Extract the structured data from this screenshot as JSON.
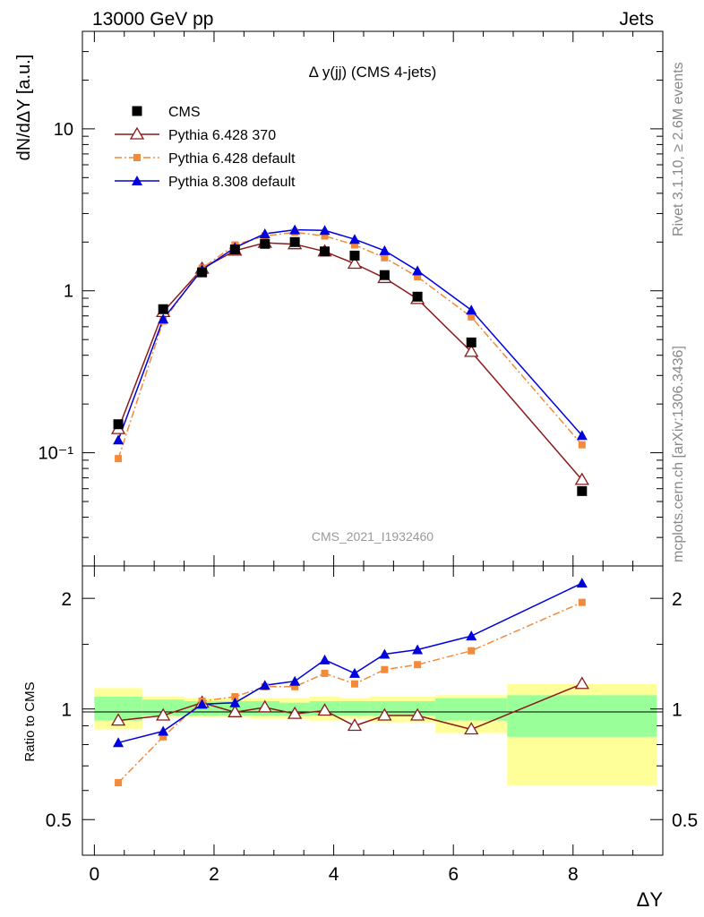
{
  "header": {
    "left": "13000 GeV pp",
    "right": "Jets"
  },
  "side_texts": {
    "rivet": "Rivet 3.1.10, ≥ 2.6M events",
    "mcplots": "mcplots.cern.ch [arXiv:1306.3436]"
  },
  "watermark": "CMS_2021_I1932460",
  "legend_title": "Δ y(jj) (CMS 4-jets)",
  "colors": {
    "cms": "#000000",
    "p6_370": "#8b1a1a",
    "p6_default": "#f28a3a",
    "p8": "#0000dd",
    "band_stat": "#99ff99",
    "band_total": "#ffff99"
  },
  "chart_data": [
    {
      "panel": "main",
      "type": "scatter",
      "ylabel": "dN/dΔY [a.u.]",
      "yscale": "log",
      "ylim": [
        0.02,
        40
      ],
      "xlim": [
        -0.2,
        9.5
      ],
      "y_tick_labels": [
        "10⁻¹",
        "1",
        "10"
      ],
      "x": [
        0.4,
        1.15,
        1.8,
        2.35,
        2.85,
        3.35,
        3.85,
        4.35,
        4.85,
        5.4,
        6.3,
        8.15
      ],
      "series": [
        {
          "name": "CMS",
          "key": "cms",
          "marker": "square",
          "values": [
            0.15,
            0.77,
            1.3,
            1.8,
            1.95,
            2.0,
            1.75,
            1.65,
            1.25,
            0.92,
            0.48,
            0.058
          ]
        },
        {
          "name": "Pythia 6.428 370",
          "key": "p6_370",
          "marker": "open-triangle",
          "line": "solid",
          "values": [
            0.14,
            0.74,
            1.37,
            1.77,
            1.98,
            1.94,
            1.75,
            1.47,
            1.2,
            0.89,
            0.42,
            0.068
          ]
        },
        {
          "name": "Pythia 6.428 default",
          "key": "p6_default",
          "marker": "filled-square-small",
          "line": "dashdot",
          "values": [
            0.092,
            0.65,
            1.38,
            1.92,
            2.18,
            2.3,
            2.18,
            1.92,
            1.6,
            1.22,
            0.69,
            0.112
          ]
        },
        {
          "name": "Pythia 8.308 default",
          "key": "p8",
          "marker": "filled-triangle",
          "line": "solid",
          "values": [
            0.12,
            0.67,
            1.35,
            1.85,
            2.25,
            2.38,
            2.36,
            2.08,
            1.77,
            1.33,
            0.76,
            0.128
          ]
        }
      ]
    },
    {
      "panel": "ratio",
      "type": "line",
      "xlabel": "ΔY",
      "ylabel": "Ratio to CMS",
      "yscale": "log",
      "ylim": [
        0.4,
        2.45
      ],
      "xlim": [
        -0.2,
        9.5
      ],
      "y_tick_labels": [
        "0.5",
        "1",
        "2"
      ],
      "x_tick_labels": [
        "0",
        "2",
        "4",
        "6",
        "8"
      ],
      "bins": [
        {
          "lo": 0.0,
          "hi": 0.8,
          "stat": [
            0.93,
            1.08
          ],
          "total": [
            0.88,
            1.14
          ]
        },
        {
          "lo": 0.8,
          "hi": 1.5,
          "stat": [
            0.96,
            1.06
          ],
          "total": [
            0.95,
            1.08
          ]
        },
        {
          "lo": 1.5,
          "hi": 2.1,
          "stat": [
            0.96,
            1.05
          ],
          "total": [
            0.95,
            1.07
          ]
        },
        {
          "lo": 2.1,
          "hi": 2.6,
          "stat": [
            0.96,
            1.05
          ],
          "total": [
            0.95,
            1.07
          ]
        },
        {
          "lo": 2.6,
          "hi": 3.1,
          "stat": [
            0.96,
            1.05
          ],
          "total": [
            0.94,
            1.07
          ]
        },
        {
          "lo": 3.1,
          "hi": 3.6,
          "stat": [
            0.96,
            1.04
          ],
          "total": [
            0.94,
            1.07
          ]
        },
        {
          "lo": 3.6,
          "hi": 4.1,
          "stat": [
            0.96,
            1.05
          ],
          "total": [
            0.93,
            1.08
          ]
        },
        {
          "lo": 4.1,
          "hi": 4.6,
          "stat": [
            0.96,
            1.05
          ],
          "total": [
            0.94,
            1.07
          ]
        },
        {
          "lo": 4.6,
          "hi": 5.1,
          "stat": [
            0.96,
            1.05
          ],
          "total": [
            0.92,
            1.08
          ]
        },
        {
          "lo": 5.1,
          "hi": 5.7,
          "stat": [
            0.96,
            1.05
          ],
          "total": [
            0.92,
            1.08
          ]
        },
        {
          "lo": 5.7,
          "hi": 6.9,
          "stat": [
            0.93,
            1.07
          ],
          "total": [
            0.86,
            1.09
          ]
        },
        {
          "lo": 6.9,
          "hi": 9.4,
          "stat": [
            0.84,
            1.09
          ],
          "total": [
            0.62,
            1.17
          ]
        }
      ],
      "x": [
        0.4,
        1.15,
        1.8,
        2.35,
        2.85,
        3.35,
        3.85,
        4.35,
        4.85,
        5.4,
        6.3,
        8.15
      ],
      "series": [
        {
          "name": "Pythia 6.428 370",
          "key": "p6_370",
          "marker": "open-triangle",
          "line": "solid",
          "values": [
            0.93,
            0.96,
            1.04,
            0.98,
            1.01,
            0.97,
            0.99,
            0.9,
            0.96,
            0.96,
            0.88,
            1.17
          ]
        },
        {
          "name": "Pythia 6.428 default",
          "key": "p6_default",
          "marker": "filled-square-small",
          "line": "dashdot",
          "values": [
            0.63,
            0.84,
            1.05,
            1.08,
            1.15,
            1.15,
            1.25,
            1.17,
            1.28,
            1.32,
            1.44,
            1.95
          ]
        },
        {
          "name": "Pythia 8.308 default",
          "key": "p8",
          "marker": "filled-triangle",
          "line": "solid",
          "values": [
            0.81,
            0.87,
            1.03,
            1.04,
            1.16,
            1.19,
            1.36,
            1.25,
            1.41,
            1.45,
            1.58,
            2.2
          ]
        }
      ]
    }
  ]
}
